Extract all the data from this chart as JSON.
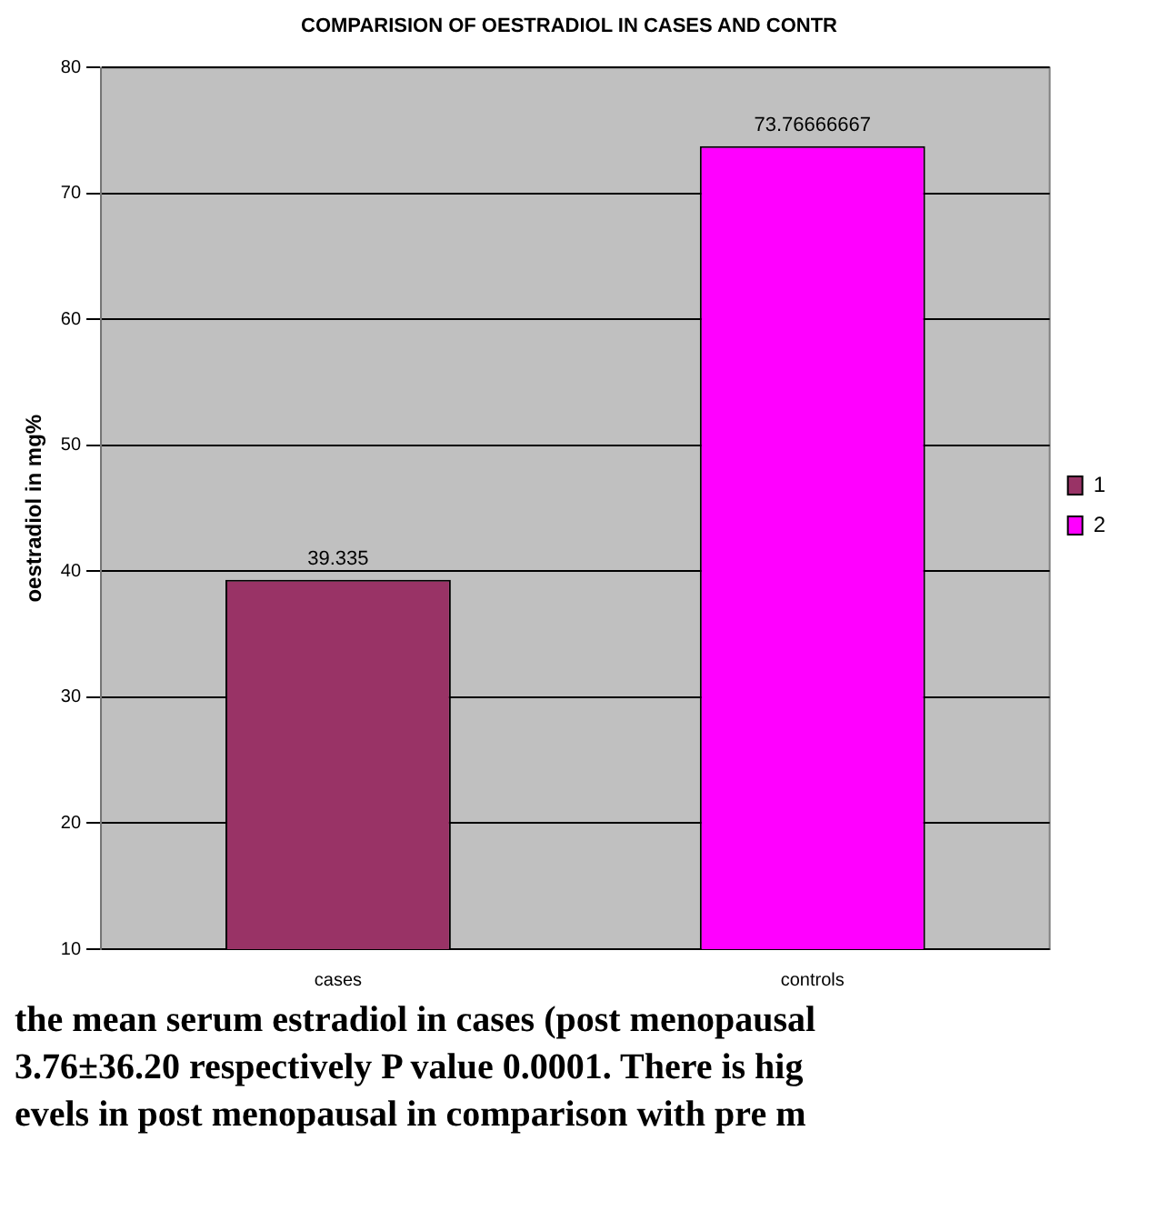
{
  "chart_data": {
    "type": "bar",
    "title": "COMPARISION OF OESTRADIOL IN CASES AND CONTR",
    "ylabel": "oestradiol in mg%",
    "categories": [
      "cases",
      "controls"
    ],
    "series": [
      {
        "name": "1",
        "color": "#993366",
        "values": [
          39.335,
          null
        ]
      },
      {
        "name": "2",
        "color": "#ff00ff",
        "values": [
          null,
          73.76666667
        ]
      }
    ],
    "ylim": [
      10,
      80
    ],
    "yticks": [
      10,
      20,
      30,
      40,
      50,
      60,
      70,
      80
    ],
    "grid": "y",
    "legend": "right",
    "data_labels": true,
    "annotations": [
      "the mean serum estradiol in cases (post menopausal",
      "3.76±36.20 respectively P value 0.0001.  There is hig",
      "evels in post menopausal in comparison with pre m"
    ]
  }
}
